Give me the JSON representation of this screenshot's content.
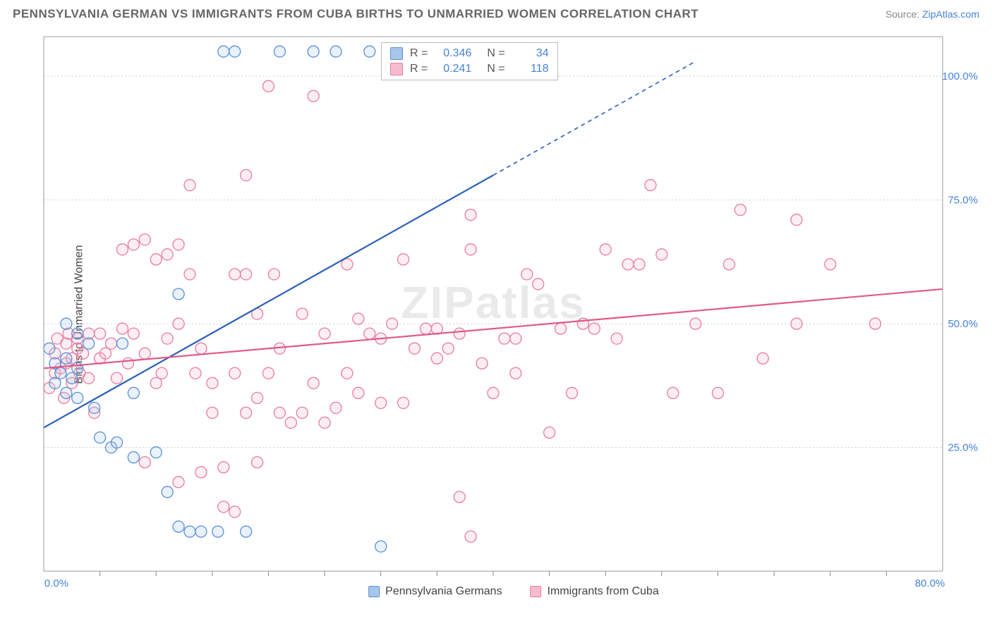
{
  "header": {
    "title": "PENNSYLVANIA GERMAN VS IMMIGRANTS FROM CUBA BIRTHS TO UNMARRIED WOMEN CORRELATION CHART",
    "source_label": "Source:",
    "source_name": "ZipAtlas.com"
  },
  "chart": {
    "type": "scatter",
    "ylabel": "Births to Unmarried Women",
    "watermark": "ZIPatlas",
    "xlim": [
      0,
      80
    ],
    "ylim": [
      0,
      108
    ],
    "xticks": [
      0,
      80
    ],
    "xtick_labels": [
      "0.0%",
      "80.0%"
    ],
    "yticks": [
      25,
      50,
      75,
      100
    ],
    "ytick_labels": [
      "25.0%",
      "50.0%",
      "75.0%",
      "100.0%"
    ],
    "xtick_marks": [
      5,
      10,
      15,
      20,
      25,
      30,
      35,
      40,
      45,
      50,
      55,
      60,
      65,
      70,
      75
    ],
    "background_color": "#ffffff",
    "grid_color": "#d0d0d0",
    "axis_color": "#999999",
    "marker_radius": 8,
    "marker_stroke_width": 1.3,
    "marker_fill_opacity": 0.25,
    "series_a": {
      "name": "Pennsylvania Germans",
      "color_stroke": "#5a8fd6",
      "color_fill": "#a8c6ec",
      "R": "0.346",
      "N": "34",
      "trend": {
        "x1": 0,
        "y1": 29,
        "x2": 40,
        "y2": 80,
        "x2_dash": 58,
        "y2_dash": 103
      },
      "points": [
        [
          0.5,
          45
        ],
        [
          1,
          42
        ],
        [
          1,
          38
        ],
        [
          1.5,
          40
        ],
        [
          2,
          43
        ],
        [
          2,
          36
        ],
        [
          2.5,
          39
        ],
        [
          3,
          41
        ],
        [
          3,
          35
        ],
        [
          5,
          27
        ],
        [
          6,
          25
        ],
        [
          6.5,
          26
        ],
        [
          8,
          23
        ],
        [
          10,
          24
        ],
        [
          11,
          16
        ],
        [
          12,
          9
        ],
        [
          13,
          8
        ],
        [
          12,
          56
        ],
        [
          14,
          8
        ],
        [
          15.5,
          8
        ],
        [
          16,
          105
        ],
        [
          17,
          105
        ],
        [
          18,
          8
        ],
        [
          21,
          105
        ],
        [
          24,
          105
        ],
        [
          26,
          105
        ],
        [
          29,
          105
        ],
        [
          30,
          5
        ],
        [
          3,
          48
        ],
        [
          4,
          46
        ],
        [
          4.5,
          33
        ],
        [
          7,
          46
        ],
        [
          8,
          36
        ],
        [
          2,
          50
        ]
      ]
    },
    "series_b": {
      "name": "Immigrants from Cuba",
      "color_stroke": "#e77ca0",
      "color_fill": "#f5bcd0",
      "R": "0.241",
      "N": "118",
      "trend": {
        "x1": 0,
        "y1": 41,
        "x2": 80,
        "y2": 57
      },
      "points": [
        [
          0.5,
          37
        ],
        [
          1,
          44
        ],
        [
          1,
          40
        ],
        [
          1.2,
          47
        ],
        [
          1.5,
          41
        ],
        [
          1.8,
          35
        ],
        [
          2,
          46
        ],
        [
          2,
          42
        ],
        [
          2.2,
          48
        ],
        [
          2.5,
          43
        ],
        [
          2.5,
          38
        ],
        [
          3,
          45
        ],
        [
          3,
          47
        ],
        [
          3.2,
          40
        ],
        [
          3.5,
          44
        ],
        [
          4,
          39
        ],
        [
          4,
          48
        ],
        [
          4.5,
          32
        ],
        [
          5,
          43
        ],
        [
          5,
          48
        ],
        [
          5.5,
          44
        ],
        [
          6,
          46
        ],
        [
          6.5,
          39
        ],
        [
          7,
          49
        ],
        [
          7,
          65
        ],
        [
          7.5,
          42
        ],
        [
          8,
          48
        ],
        [
          8,
          66
        ],
        [
          9,
          67
        ],
        [
          9,
          44
        ],
        [
          9,
          22
        ],
        [
          10,
          38
        ],
        [
          10,
          63
        ],
        [
          10.5,
          40
        ],
        [
          11,
          64
        ],
        [
          11,
          47
        ],
        [
          12,
          66
        ],
        [
          12,
          18
        ],
        [
          12,
          50
        ],
        [
          13,
          60
        ],
        [
          13,
          78
        ],
        [
          13.5,
          40
        ],
        [
          14,
          20
        ],
        [
          14,
          45
        ],
        [
          15,
          32
        ],
        [
          15,
          38
        ],
        [
          16,
          13
        ],
        [
          16,
          21
        ],
        [
          17,
          60
        ],
        [
          17,
          40
        ],
        [
          17,
          12
        ],
        [
          18,
          32
        ],
        [
          18,
          60
        ],
        [
          18,
          80
        ],
        [
          19,
          52
        ],
        [
          19,
          22
        ],
        [
          19,
          35
        ],
        [
          20,
          98
        ],
        [
          20,
          40
        ],
        [
          20.5,
          60
        ],
        [
          21,
          45
        ],
        [
          21,
          32
        ],
        [
          22,
          30
        ],
        [
          23,
          32
        ],
        [
          23,
          52
        ],
        [
          24,
          96
        ],
        [
          24,
          38
        ],
        [
          25,
          48
        ],
        [
          25,
          30
        ],
        [
          26,
          33
        ],
        [
          27,
          40
        ],
        [
          27,
          62
        ],
        [
          28,
          51
        ],
        [
          28,
          36
        ],
        [
          29,
          48
        ],
        [
          30,
          47
        ],
        [
          30,
          34
        ],
        [
          31,
          50
        ],
        [
          32,
          63
        ],
        [
          32,
          34
        ],
        [
          33,
          45
        ],
        [
          34,
          49
        ],
        [
          35,
          49
        ],
        [
          35,
          43
        ],
        [
          36,
          45
        ],
        [
          37,
          48
        ],
        [
          37,
          15
        ],
        [
          38,
          65
        ],
        [
          38,
          72
        ],
        [
          39,
          42
        ],
        [
          40,
          36
        ],
        [
          41,
          47
        ],
        [
          42,
          47
        ],
        [
          42,
          40
        ],
        [
          43,
          60
        ],
        [
          44,
          58
        ],
        [
          45,
          28
        ],
        [
          46,
          49
        ],
        [
          47,
          36
        ],
        [
          48,
          50
        ],
        [
          49,
          49
        ],
        [
          50,
          65
        ],
        [
          51,
          47
        ],
        [
          52,
          62
        ],
        [
          53,
          62
        ],
        [
          54,
          78
        ],
        [
          55,
          64
        ],
        [
          56,
          36
        ],
        [
          58,
          50
        ],
        [
          60,
          36
        ],
        [
          61,
          62
        ],
        [
          62,
          73
        ],
        [
          64,
          43
        ],
        [
          67,
          71
        ],
        [
          67,
          50
        ],
        [
          70,
          62
        ],
        [
          74,
          50
        ],
        [
          38,
          7
        ]
      ]
    }
  },
  "legend_bottom": {
    "a": "Pennsylvania Germans",
    "b": "Immigrants from Cuba"
  }
}
